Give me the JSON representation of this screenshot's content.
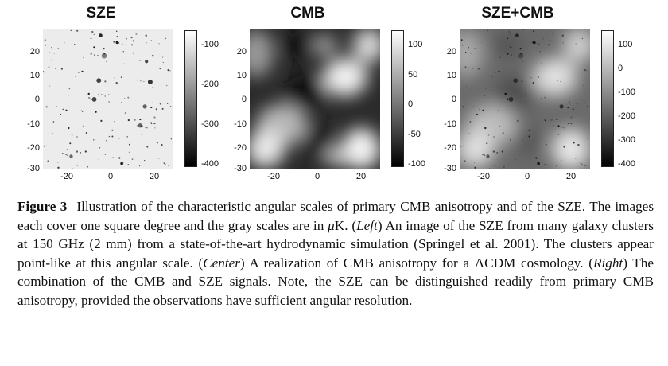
{
  "panels": [
    {
      "title": "SZE",
      "colorbar": [
        "-100",
        "-200",
        "-300",
        "-400"
      ]
    },
    {
      "title": "CMB",
      "colorbar": [
        "100",
        "50",
        "0",
        "-50",
        "-100"
      ]
    },
    {
      "title": "SZE+CMB",
      "colorbar": [
        "100",
        "0",
        "-100",
        "-200",
        "-300",
        "-400"
      ]
    }
  ],
  "axes": {
    "y_ticks": [
      "20",
      "10",
      "0",
      "-10",
      "-20",
      "-30"
    ],
    "x_ticks": [
      "-20",
      "0",
      "20"
    ]
  },
  "caption": {
    "label": "Figure 3",
    "s1": "Illustration of the characteristic angular scales of primary CMB anisotropy and of the SZE. The images each cover one square degree and the gray scales are in ",
    "unit_mu": "μ",
    "unit_k": "K. (",
    "left": "Left",
    "s2": ") An image of the SZE from many galaxy clusters at 150 GHz (2 mm) from a state-of-the-art hydrodynamic simulation (Springel et al. 2001). The clusters appear point-like at this angular scale. (",
    "center": "Center",
    "s3": ") A realization of CMB anisotropy for a ",
    "lcdm": "ΛCDM",
    "s4": " cosmology. (",
    "right": "Right",
    "s5": ") The combination of the CMB and SZE signals. Note, the SZE can be distinguished readily from primary CMB anisotropy, provided the observations have sufficient angular resolution."
  }
}
